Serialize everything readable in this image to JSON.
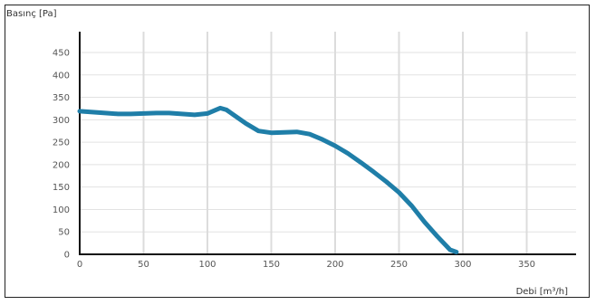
{
  "chart_data": {
    "type": "line",
    "ylabel": "Basınç [Pa]",
    "xlabel": "Debi [m³/h]",
    "xlim": [
      0,
      390
    ],
    "ylim": [
      0,
      490
    ],
    "x_ticks": [
      0,
      50,
      100,
      150,
      200,
      250,
      300,
      350
    ],
    "y_ticks": [
      0,
      50,
      100,
      150,
      200,
      250,
      300,
      350,
      400,
      450
    ],
    "grid": true,
    "series": [
      {
        "color": "#1f7ea8",
        "x": [
          0,
          10,
          20,
          30,
          40,
          50,
          60,
          70,
          80,
          90,
          100,
          105,
          110,
          115,
          120,
          130,
          140,
          150,
          160,
          170,
          180,
          190,
          200,
          210,
          220,
          230,
          240,
          250,
          260,
          270,
          280,
          290,
          295
        ],
        "y": [
          319,
          317,
          315,
          313,
          313,
          314,
          315,
          315,
          313,
          311,
          314,
          320,
          326,
          322,
          312,
          292,
          275,
          271,
          272,
          273,
          268,
          256,
          242,
          225,
          205,
          184,
          162,
          138,
          108,
          72,
          40,
          10,
          5
        ]
      }
    ]
  }
}
